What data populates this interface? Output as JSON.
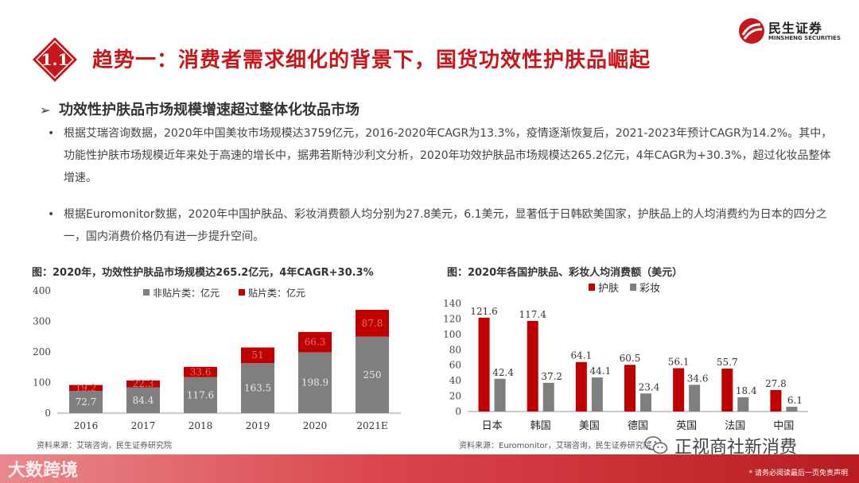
{
  "brand": {
    "cn": "民生证券",
    "en": "MINSHENG SECURITIES"
  },
  "section": {
    "number": "1.1",
    "title": "趋势一：消费者需求细化的背景下，国货功效性护肤品崛起"
  },
  "subheading": {
    "bullet": "➢",
    "text": "功效性护肤品市场规模增速超过整体化妆品市场"
  },
  "paragraphs": [
    {
      "bullet": "•",
      "text": "根据艾瑞咨询数据，2020年中国美妆市场规模达3759亿元，2016-2020年CAGR为13.3%，疫情逐渐恢复后，2021-2023年预计CAGR为14.2%。其中，功能性护肤市场规模近年来处于高速的增长中，据弗若斯特沙利文分析，2020年功效护肤品市场规模达265.2亿元，4年CAGR为+30.3%，超过化妆品整体增速。"
    },
    {
      "bullet": "•",
      "text": "根据Euromonitor数据，2020年中国护肤品、彩妆消费额人均分别为27.8美元，6.1美元，显著低于日韩欧美国家，护肤品上的人均消费约为日本的四分之一，国内消费价格仍有进一步提升空间。"
    }
  ],
  "charts": [
    {
      "caption": "图：2020年，功效性护肤品市场规模达265.2亿元，4年CAGR+30.3%",
      "source": "资料来源：艾瑞咨询，民生证券研究院"
    },
    {
      "caption": "图：2020年各国护肤品、彩妆人均消费额（美元）",
      "source": "资料来源：Euromonitor，艾瑞咨询，民生证券研究院"
    }
  ],
  "chart_data": [
    {
      "type": "bar",
      "stacked": true,
      "categories": [
        "2016",
        "2017",
        "2018",
        "2019",
        "2020",
        "2021E"
      ],
      "series": [
        {
          "name": "非贴片类：亿元",
          "values": [
            72.7,
            84.4,
            117.6,
            163.5,
            198.9,
            250
          ],
          "color": "#7f7f7f"
        },
        {
          "name": "贴片类：亿元",
          "values": [
            19.2,
            22.3,
            33.6,
            51.0,
            66.3,
            87.8
          ],
          "color": "#c00000"
        }
      ],
      "y_ticks": [
        "0",
        "100",
        "200",
        "300",
        "400"
      ],
      "ylim": [
        0,
        400
      ],
      "grid": false,
      "legend": "top"
    },
    {
      "type": "bar",
      "categories": [
        "日本",
        "韩国",
        "美国",
        "德国",
        "英国",
        "法国",
        "中国"
      ],
      "series": [
        {
          "name": "护肤",
          "values": [
            121.6,
            117.4,
            64.1,
            60.5,
            56.1,
            55.7,
            27.8
          ],
          "color": "#c00000"
        },
        {
          "name": "彩妆",
          "values": [
            42.4,
            37.2,
            44.1,
            23.4,
            34.6,
            18.4,
            6.1
          ],
          "color": "#7f7f7f"
        }
      ],
      "y_ticks": [
        "0",
        "20",
        "40",
        "60",
        "80",
        "100",
        "120",
        "140"
      ],
      "ylim": [
        0,
        140
      ],
      "grid": false,
      "legend": "top-left"
    }
  ],
  "watermarks": {
    "bottom": "大数跨境",
    "right": "正视商社新消费"
  },
  "footer": {
    "note": "* 请务必阅读最后一页免责声明"
  },
  "colors": {
    "accent": "#c8161d",
    "bar_red": "#c00000",
    "bar_gray": "#7f7f7f"
  },
  "icons": {
    "wechat_icon": "wechat-icon",
    "brand_logo": "minsheng-logo"
  }
}
